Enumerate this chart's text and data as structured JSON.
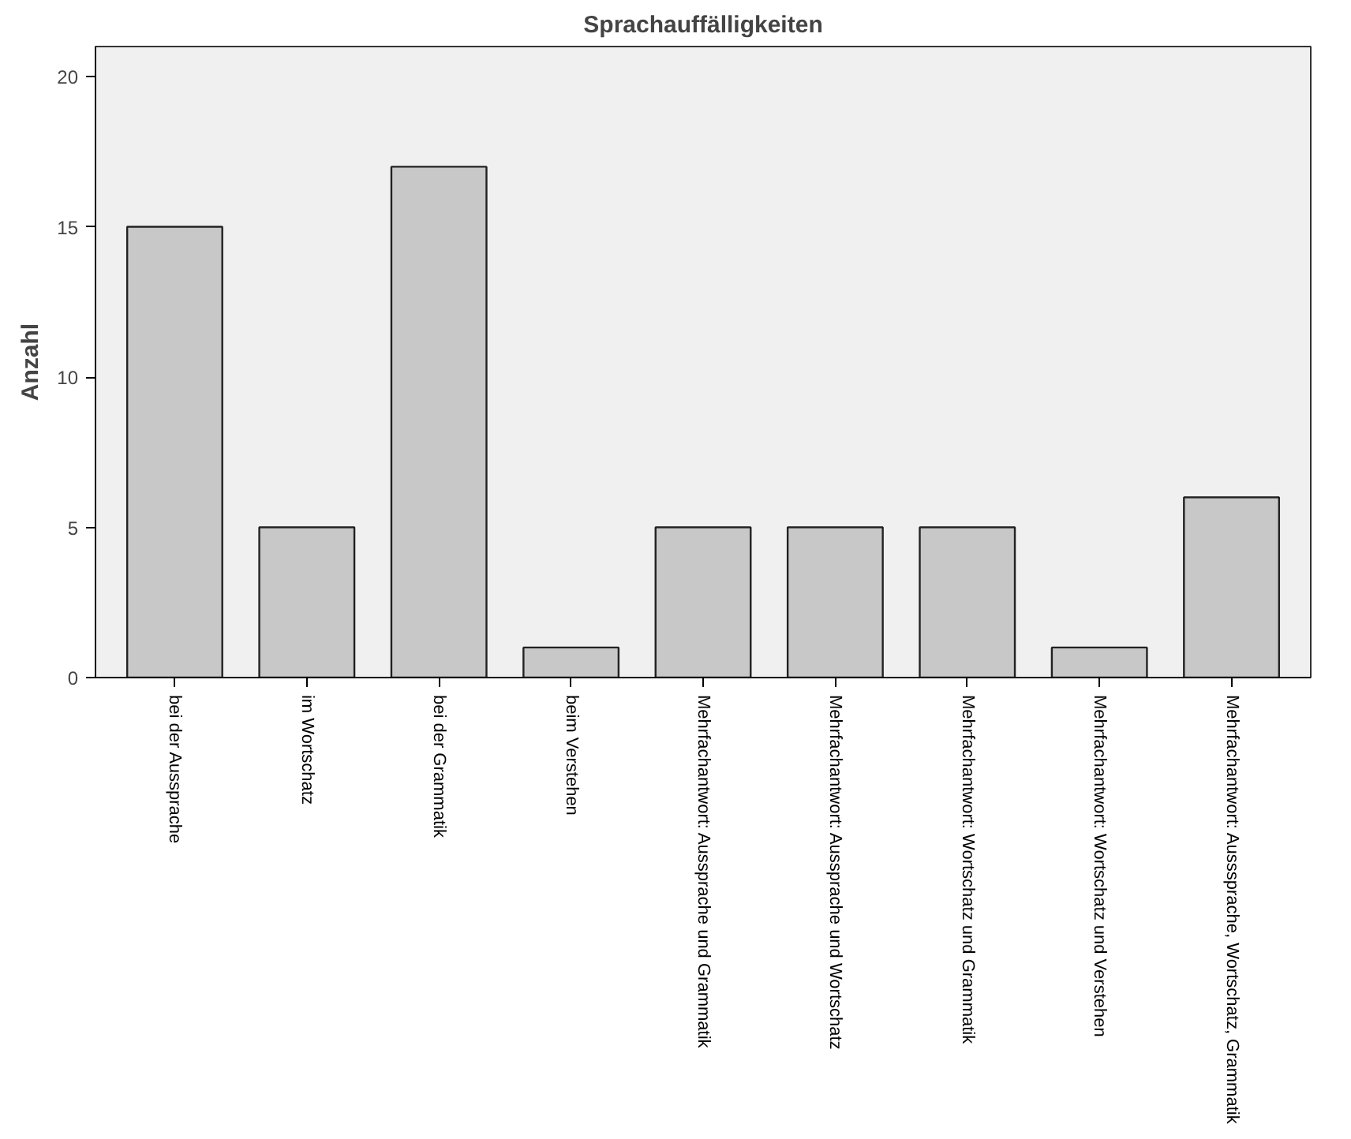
{
  "chart_data": {
    "type": "bar",
    "title": "Sprachauffälligkeiten",
    "ylabel": "Anzahl",
    "categories": [
      "bei der Aussprache",
      "im Wortschatz",
      "bei der Grammatik",
      "beim Verstehen",
      "Mehrfachantwort: Aussprache und Grammatik",
      "Mehrfachantwort: Aussprache und Wortschatz",
      "Mehrfachantwort: Wortschatz und Grammatik",
      "Mehrfachantwort: Wortschatz und Verstehen",
      "Mehrfachantwort: Ausssprache, Wortschatz, Grammatik"
    ],
    "values": [
      15,
      5,
      17,
      1,
      5,
      5,
      5,
      1,
      6
    ],
    "color": "#c8c8c8",
    "ylim": [
      0,
      21
    ],
    "yticks": [
      0,
      5,
      10,
      15,
      20
    ],
    "grid": false
  }
}
